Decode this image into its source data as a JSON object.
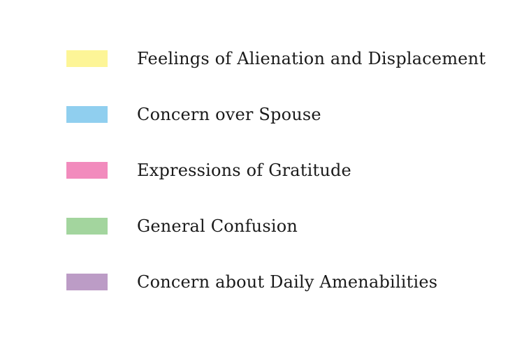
{
  "legend": {
    "items": [
      {
        "label": "Feelings of Alienation and Displacement",
        "color": "#fdf597"
      },
      {
        "label": "Concern over Spouse",
        "color": "#90cfef"
      },
      {
        "label": "Expressions of Gratitude",
        "color": "#f28bbd"
      },
      {
        "label": "General Confusion",
        "color": "#a3d59e"
      },
      {
        "label": "Concern about Daily Amenabilities",
        "color": "#bc9cc6"
      }
    ]
  }
}
